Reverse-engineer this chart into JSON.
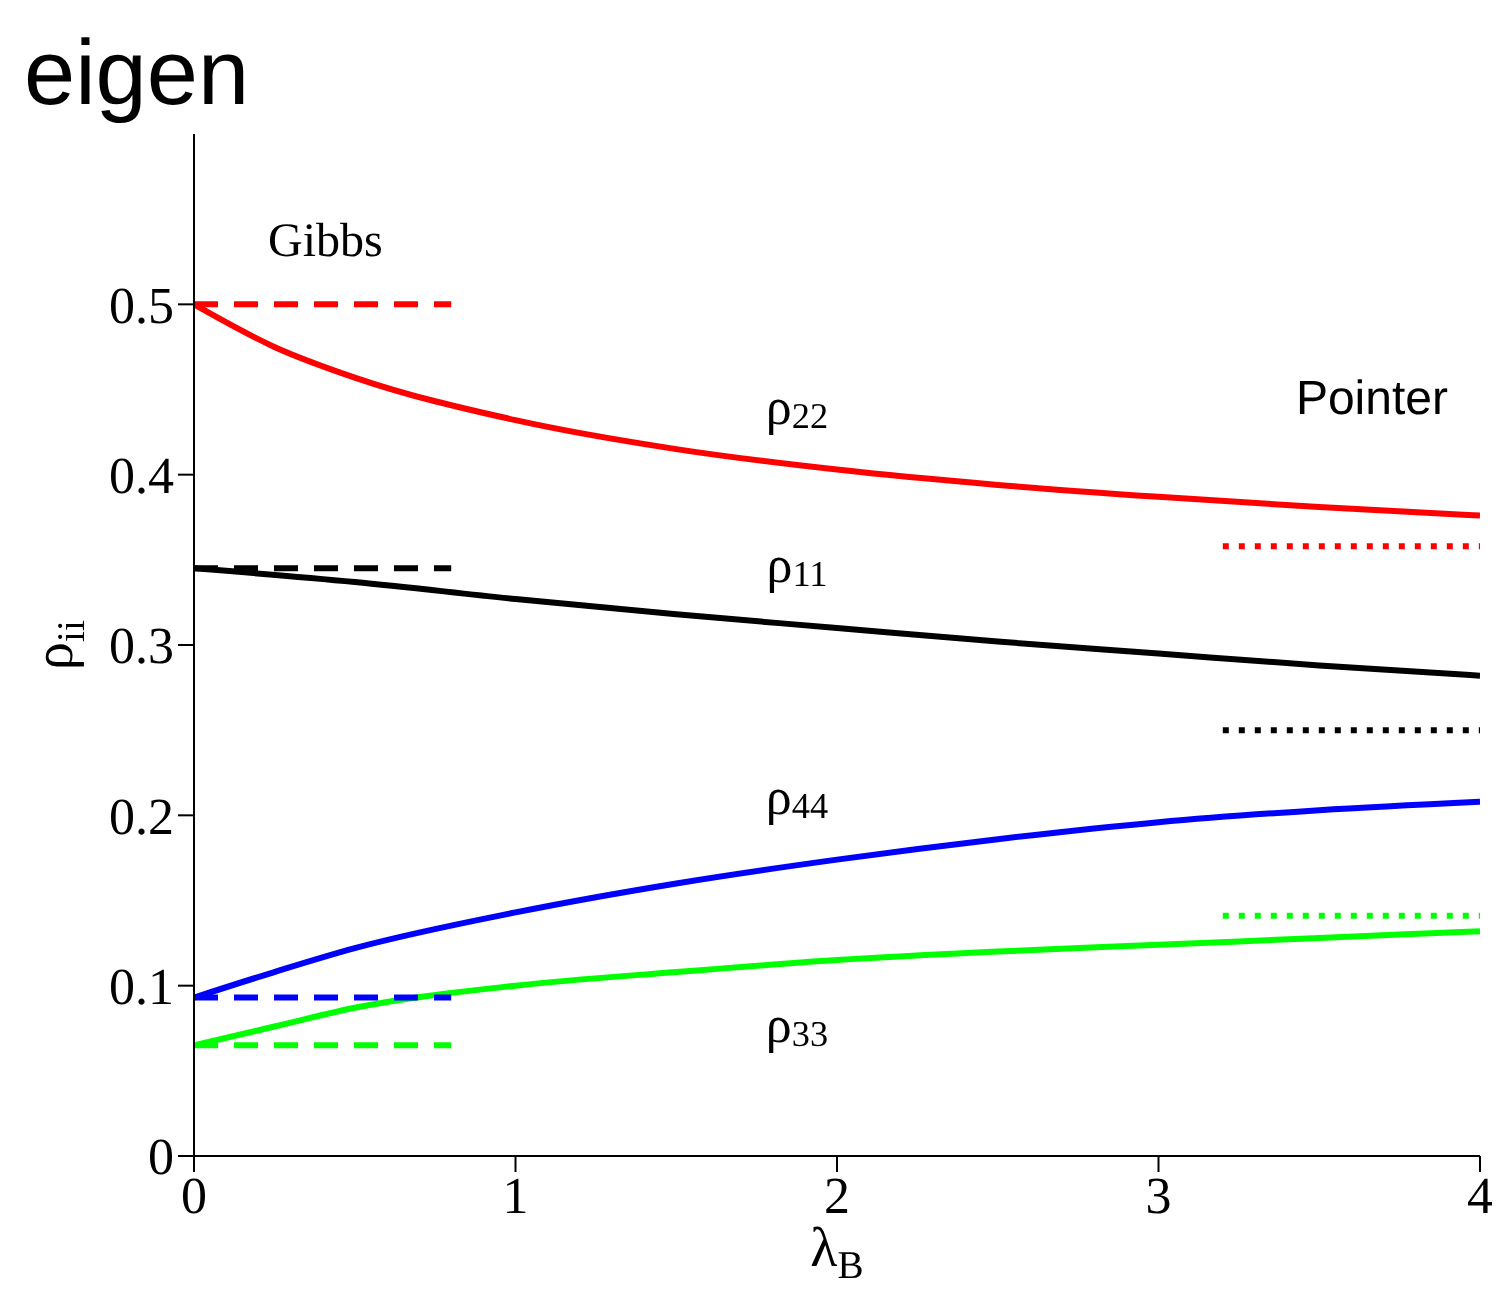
{
  "chart_data": {
    "type": "line",
    "title": "eigen",
    "xlabel": "λ$_{B}$",
    "ylabel": "ρ$_{ii}$",
    "xlim": [
      0,
      4
    ],
    "xticks": [
      0,
      1,
      2,
      3,
      4
    ],
    "ylim": [
      0,
      0.6
    ],
    "yticks": [
      0,
      0.1,
      0.2,
      0.3,
      0.4,
      0.5
    ],
    "marker": "none",
    "series": [
      {
        "name": "ρ$_{22}$",
        "color": "#ff0000",
        "line_style": "solid",
        "x": [
          0,
          0.25,
          0.5,
          1,
          1.5,
          2,
          2.5,
          3,
          3.5,
          4
        ],
        "values": [
          0.5,
          0.475,
          0.457,
          0.432,
          0.415,
          0.403,
          0.394,
          0.387,
          0.381,
          0.376
        ]
      },
      {
        "name": "ρ$_{11}$",
        "color": "#000000",
        "line_style": "solid",
        "x": [
          0,
          0.5,
          1,
          1.5,
          2,
          2.5,
          3,
          3.5,
          4
        ],
        "values": [
          0.345,
          0.337,
          0.327,
          0.318,
          0.31,
          0.302,
          0.295,
          0.288,
          0.282
        ]
      },
      {
        "name": "ρ$_{44}$",
        "color": "#0000ff",
        "line_style": "solid",
        "x": [
          0,
          0.25,
          0.5,
          1,
          1.5,
          2,
          2.5,
          3,
          3.5,
          4
        ],
        "values": [
          0.093,
          0.108,
          0.122,
          0.143,
          0.16,
          0.174,
          0.186,
          0.196,
          0.203,
          0.208
        ]
      },
      {
        "name": "ρ$_{33}$",
        "color": "#00ff00",
        "line_style": "solid",
        "x": [
          0,
          0.25,
          0.5,
          1,
          1.5,
          2,
          2.5,
          3,
          3.5,
          4
        ],
        "values": [
          0.065,
          0.076,
          0.087,
          0.1,
          0.108,
          0.115,
          0.12,
          0.124,
          0.128,
          0.132
        ]
      },
      {
        "color": "#ff0000",
        "line_style": "dashed",
        "x": [
          0,
          0.8
        ],
        "values": [
          0.5,
          0.5
        ]
      },
      {
        "color": "#000000",
        "line_style": "dashed",
        "x": [
          0,
          0.8
        ],
        "values": [
          0.345,
          0.345
        ]
      },
      {
        "color": "#0000ff",
        "line_style": "dashed",
        "x": [
          0,
          0.8
        ],
        "values": [
          0.093,
          0.093
        ]
      },
      {
        "color": "#00ff00",
        "line_style": "dashed",
        "x": [
          0,
          0.8
        ],
        "values": [
          0.065,
          0.065
        ]
      },
      {
        "color": "#ff0000",
        "line_style": "dotted",
        "x": [
          3.2,
          4
        ],
        "values": [
          0.358,
          0.358
        ]
      },
      {
        "color": "#000000",
        "line_style": "dotted",
        "x": [
          3.2,
          4
        ],
        "values": [
          0.25,
          0.25
        ]
      },
      {
        "color": "#00ff00",
        "line_style": "dotted",
        "x": [
          3.2,
          4
        ],
        "values": [
          0.141,
          0.141
        ]
      }
    ],
    "annotations": [
      "Gibbs",
      "Pointer"
    ]
  }
}
